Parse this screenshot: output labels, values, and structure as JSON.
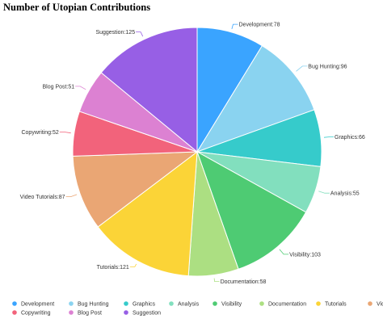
{
  "chart_data": {
    "type": "pie",
    "title": "Number of Utopian Contributions",
    "slices": [
      {
        "label": "Development",
        "value": 78,
        "color": "#3aa4ff"
      },
      {
        "label": "Bug Hunting",
        "value": 96,
        "color": "#8ad3f0"
      },
      {
        "label": "Graphics",
        "value": 66,
        "color": "#36cbcb"
      },
      {
        "label": "Analysis",
        "value": 55,
        "color": "#82dfbe"
      },
      {
        "label": "Visibility",
        "value": 103,
        "color": "#4ecb73"
      },
      {
        "label": "Documentation",
        "value": 58,
        "color": "#acdf82"
      },
      {
        "label": "Tutorials",
        "value": 121,
        "color": "#fbd437"
      },
      {
        "label": "Video Tutorials",
        "value": 87,
        "color": "#eaa674"
      },
      {
        "label": "Copywriting",
        "value": 52,
        "color": "#f2637b"
      },
      {
        "label": "Blog Post",
        "value": 51,
        "color": "#dc81d2"
      },
      {
        "label": "Suggestion",
        "value": 125,
        "color": "#975fe5"
      }
    ],
    "legend_position": "bottom"
  }
}
